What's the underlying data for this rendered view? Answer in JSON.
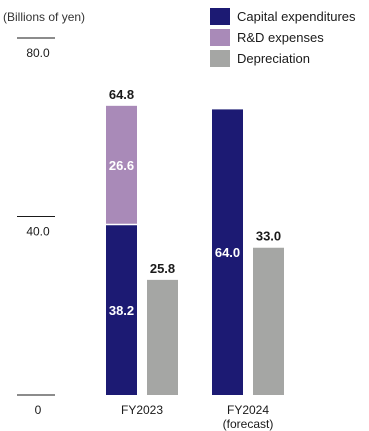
{
  "chart_data": {
    "type": "bar",
    "stacked": true,
    "unit_label": "(Billions of yen)",
    "ylim": [
      0,
      80
    ],
    "yticks": [
      "80.0",
      "40.0",
      "0"
    ],
    "groups": [
      {
        "label": "FY2023",
        "sublabel": "",
        "bars": [
          {
            "segments": [
              {
                "series": "Capital expenditures",
                "value": 38.2,
                "label": "38.2"
              },
              {
                "series": "R&D expenses",
                "value": 26.6,
                "label": "26.6"
              }
            ],
            "total_label": "64.8"
          },
          {
            "segments": [
              {
                "series": "Depreciation",
                "value": 25.8,
                "label": ""
              }
            ],
            "total_label": "25.8"
          }
        ]
      },
      {
        "label": "FY2024",
        "sublabel": "(forecast)",
        "bars": [
          {
            "segments": [
              {
                "series": "Capital expenditures",
                "value": 64.0,
                "label": "64.0"
              }
            ],
            "total_label": ""
          },
          {
            "segments": [
              {
                "series": "Depreciation",
                "value": 33.0,
                "label": ""
              }
            ],
            "total_label": "33.0"
          }
        ]
      }
    ],
    "series": [
      {
        "name": "Capital expenditures",
        "color": "#1c1a73"
      },
      {
        "name": "R&D expenses",
        "color": "#a98ab8"
      },
      {
        "name": "Depreciation",
        "color": "#a5a6a4"
      }
    ],
    "legend_position": "top-right"
  }
}
